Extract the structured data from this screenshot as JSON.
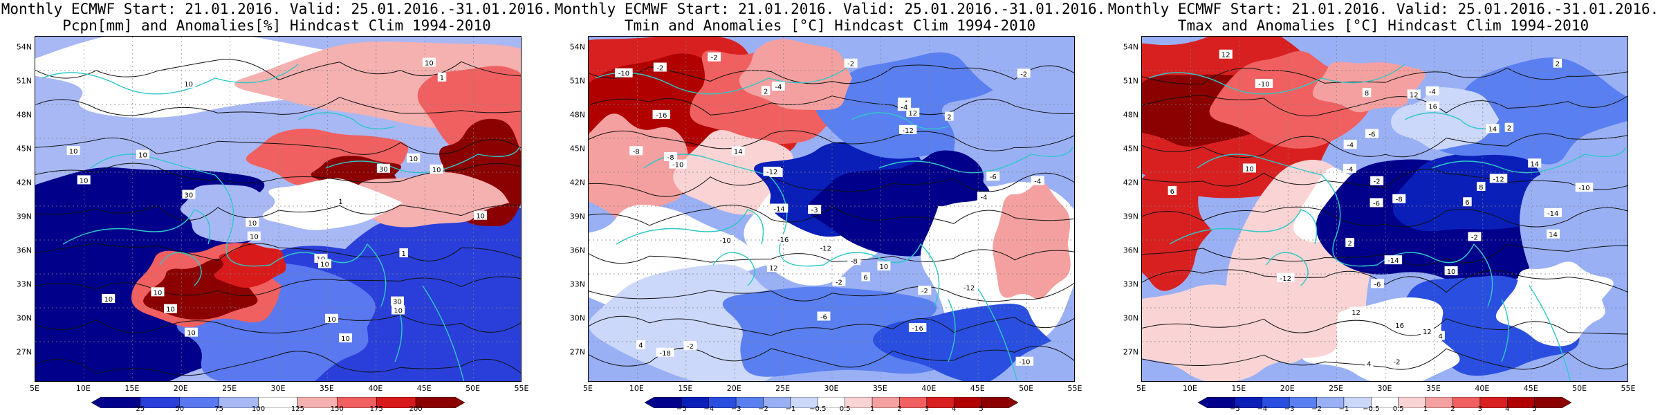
{
  "panels": [
    {
      "id": "pcpn",
      "title_line1": "Monthly ECMWF Start: 21.01.2016. Valid: 25.01.2016.-31.01.2016.",
      "title_line2": "Pcpn[mm] and Anomalies[%] Hindcast Clim 1994-2010",
      "lat_labels": [
        "54N",
        "51N",
        "48N",
        "45N",
        "42N",
        "39N",
        "36N",
        "33N",
        "30N",
        "27N"
      ],
      "lon_labels": [
        "5E",
        "10E",
        "15E",
        "20E",
        "25E",
        "30E",
        "35E",
        "40E",
        "45E",
        "50E",
        "55E"
      ],
      "colorbar_labels": [
        "25",
        "50",
        "75",
        "100",
        "125",
        "150",
        "175",
        "200"
      ],
      "contour_labels": [
        "10",
        "10",
        "10",
        "10",
        "10",
        "10",
        "10",
        "30",
        "10",
        "10",
        "10",
        "10",
        "10",
        "10",
        "30",
        "10",
        "10",
        "1",
        "1",
        "10",
        "30",
        "10",
        "10",
        "10",
        "1"
      ]
    },
    {
      "id": "tmin",
      "title_line1": "Monthly ECMWF Start: 21.01.2016. Valid: 25.01.2016.-31.01.2016.",
      "title_line2": "Tmin and Anomalies [°C] Hindcast Clim 1994-2010",
      "lat_labels": [
        "54N",
        "51N",
        "48N",
        "45N",
        "42N",
        "39N",
        "36N",
        "33N",
        "30N",
        "27N"
      ],
      "lon_labels": [
        "5E",
        "10E",
        "15E",
        "20E",
        "25E",
        "30E",
        "35E",
        "40E",
        "45E",
        "50E",
        "55E"
      ],
      "colorbar_labels": [
        "−5",
        "−4",
        "−3",
        "−2",
        "−1",
        "−0.5",
        "0.5",
        "1",
        "2",
        "3",
        "4",
        "5"
      ],
      "contour_labels": [
        "2",
        "-3",
        "-4",
        "-2",
        "-6",
        "-8",
        "-12",
        "-16",
        "-10",
        "-12",
        "-4",
        "-6",
        "-2",
        "-8",
        "-12",
        "-10",
        "-14",
        "-16",
        "-18",
        "-8",
        "-10",
        "-2",
        "-4",
        "-2",
        "10",
        "14",
        "12",
        "12",
        "2",
        "6",
        "4",
        "-2",
        "-4",
        "-16",
        "-2",
        "-4",
        "-10",
        "-6",
        "-12",
        "-2"
      ]
    },
    {
      "id": "tmax",
      "title_line1": "Monthly ECMWF Start: 21.01.2016. Valid: 25.01.2016.-31.01.2016.",
      "title_line2": "Tmax and Anomalies [°C] Hindcast Clim 1994-2010",
      "lat_labels": [
        "54N",
        "51N",
        "48N",
        "45N",
        "42N",
        "39N",
        "36N",
        "33N",
        "30N",
        "27N"
      ],
      "lon_labels": [
        "5E",
        "10E",
        "15E",
        "20E",
        "25E",
        "30E",
        "35E",
        "40E",
        "45E",
        "50E",
        "55E"
      ],
      "colorbar_labels": [
        "−5",
        "−4",
        "−3",
        "−2",
        "−1",
        "−0.5",
        "0.5",
        "1",
        "2",
        "3",
        "4",
        "5"
      ],
      "contour_labels": [
        "-14",
        "4",
        "-8",
        "-12",
        "-10",
        "-6",
        "2",
        "-6",
        "-4",
        "8",
        "12",
        "6",
        "2",
        "-2",
        "-4",
        "-10",
        "-2",
        "-14",
        "-6",
        "-4",
        "-12",
        "-2",
        "6",
        "10",
        "12",
        "14",
        "16",
        "12",
        "10",
        "14",
        "8",
        "12",
        "16",
        "14",
        "2",
        "4"
      ]
    }
  ],
  "colors": {
    "pcpn_scale": [
      "#00008b",
      "#2a3fd9",
      "#5a78f0",
      "#a8b8f5",
      "#ffffff",
      "#f5b0b0",
      "#f06060",
      "#d91a1a",
      "#8b0000"
    ],
    "temp_scale": [
      "#00008b",
      "#0a1fb8",
      "#2a4fe0",
      "#5a7ff0",
      "#9ab0f5",
      "#ccd8fa",
      "#ffffff",
      "#fad4d4",
      "#f5a0a0",
      "#f06060",
      "#d92020",
      "#b00000",
      "#8b0000"
    ],
    "coastline": "#2ec8c8",
    "grid": "#808080"
  }
}
